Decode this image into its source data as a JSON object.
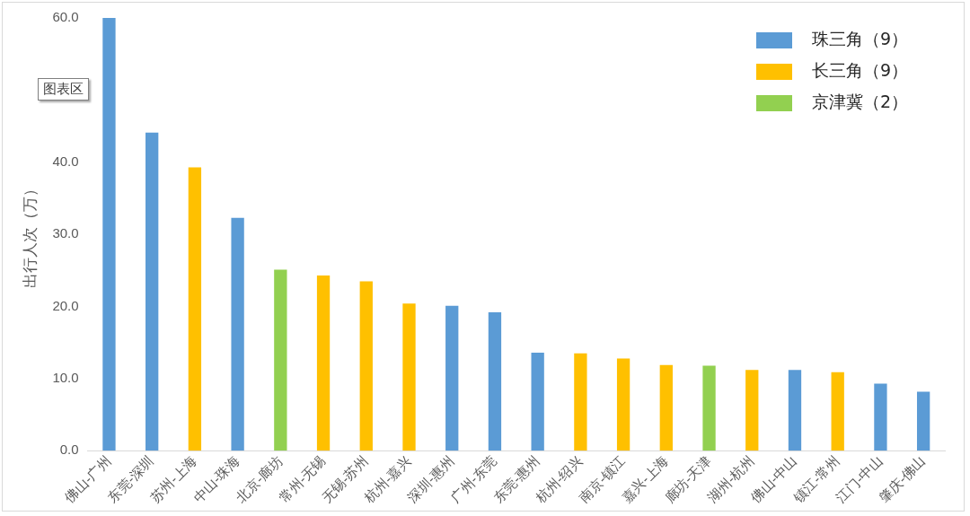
{
  "chart_data": {
    "type": "bar",
    "ylabel": "出行人次（万）",
    "categories": [
      "佛山-广州",
      "东莞-深圳",
      "苏州-上海",
      "中山-珠海",
      "北京-廊坊",
      "常州-无锡",
      "无锡-苏州",
      "杭州-嘉兴",
      "深圳-惠州",
      "广州-东莞",
      "东莞-惠州",
      "杭州-绍兴",
      "南京-镇江",
      "嘉兴-上海",
      "廊坊-天津",
      "湖州-杭州",
      "佛山-中山",
      "镇江-常州",
      "江门-中山",
      "肇庆-佛山"
    ],
    "series": [
      {
        "name": "珠三角（9）",
        "color": "#5b9bd5",
        "values": [
          60.0,
          44.1,
          null,
          32.3,
          null,
          null,
          null,
          null,
          20.1,
          19.2,
          13.6,
          null,
          null,
          null,
          null,
          null,
          11.2,
          null,
          9.3,
          8.2
        ]
      },
      {
        "name": "长三角（9）",
        "color": "#ffc000",
        "values": [
          null,
          null,
          39.3,
          null,
          null,
          24.3,
          23.5,
          20.4,
          null,
          null,
          null,
          13.5,
          12.8,
          11.9,
          null,
          11.2,
          null,
          10.9,
          null,
          null
        ]
      },
      {
        "name": "京津冀（2）",
        "color": "#92d050",
        "values": [
          null,
          null,
          null,
          null,
          25.1,
          null,
          null,
          null,
          null,
          null,
          null,
          null,
          null,
          null,
          11.8,
          null,
          null,
          null,
          null,
          null
        ]
      }
    ],
    "stacked": true,
    "ylim": [
      0,
      60
    ],
    "yticks": [
      {
        "value": 0,
        "label": "0.0"
      },
      {
        "value": 10,
        "label": "10.0"
      },
      {
        "value": 20,
        "label": "20.0"
      },
      {
        "value": 30,
        "label": "30.0"
      },
      {
        "value": 40,
        "label": "40.0"
      },
      {
        "value": 60,
        "label": "60.0"
      }
    ],
    "grid": false,
    "legend": "top right",
    "annotations": [
      "图表区"
    ]
  }
}
